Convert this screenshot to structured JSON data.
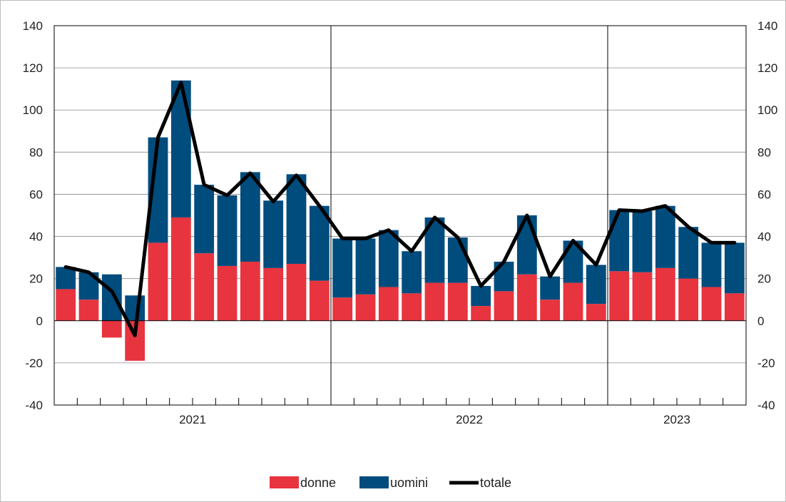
{
  "chart_data": {
    "type": "bar",
    "stacked": true,
    "title": "",
    "xlabel": "",
    "ylabel": "",
    "ylim": [
      -40,
      140
    ],
    "yticks": [
      -40,
      -20,
      0,
      20,
      40,
      60,
      80,
      100,
      120,
      140
    ],
    "ytick_labels": [
      "-40",
      "-20",
      "0",
      "20",
      "40",
      "60",
      "80",
      "100",
      "120",
      "140"
    ],
    "secondary_axis": true,
    "grid": true,
    "legend_position": "bottom",
    "months_per_year_tick": [
      0,
      12,
      24
    ],
    "year_separators_after_month_index": [
      11,
      23
    ],
    "years": [
      {
        "label": "2021",
        "start_index": 0,
        "end_index": 11
      },
      {
        "label": "2022",
        "start_index": 12,
        "end_index": 23
      },
      {
        "label": "2023",
        "start_index": 24,
        "end_index": 29
      }
    ],
    "series": [
      {
        "name": "donne",
        "color": "#e8343e",
        "values": [
          15,
          10,
          -8,
          -19,
          37,
          49,
          32,
          26,
          28,
          25,
          27,
          19,
          11,
          12.5,
          16,
          13,
          18,
          18,
          7,
          14,
          22,
          10,
          18,
          8,
          23.5,
          23,
          25,
          20,
          16,
          13
        ]
      },
      {
        "name": "uomini",
        "color": "#004c7d",
        "values": [
          10.5,
          13,
          22,
          12,
          50,
          65,
          32.5,
          33.5,
          42.5,
          32,
          42.5,
          35.5,
          28,
          26.5,
          27,
          20,
          31,
          21.5,
          9.5,
          14,
          28,
          11,
          20,
          18.5,
          29,
          29,
          29.5,
          24.5,
          21,
          24
        ]
      }
    ],
    "line": {
      "name": "totale",
      "color": "#000000",
      "values": [
        25.5,
        23,
        14,
        -7,
        87,
        113,
        64.5,
        59.5,
        70,
        56.5,
        69,
        54.5,
        39,
        39,
        43,
        33,
        49,
        39.5,
        16.5,
        28,
        50,
        21,
        38,
        26.5,
        52.5,
        52,
        54.5,
        44.5,
        37,
        37
      ]
    }
  }
}
